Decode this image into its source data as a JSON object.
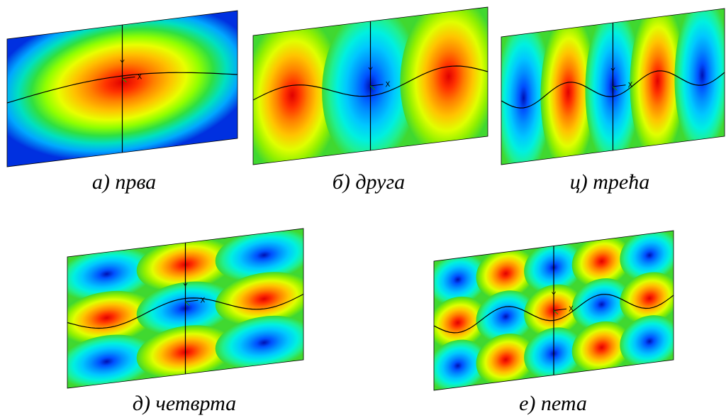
{
  "panels": [
    {
      "caption": "а) прва",
      "axis_labels": [
        "Y",
        "X"
      ]
    },
    {
      "caption": "б) друга",
      "axis_labels": [
        "Y",
        "X"
      ]
    },
    {
      "caption": "ц) трећа",
      "axis_labels": [
        "Y",
        "X"
      ]
    },
    {
      "caption": "д) четврта",
      "axis_labels": [
        "Y",
        "X"
      ]
    },
    {
      "caption": "е) пета",
      "axis_labels": [
        "Y",
        "X"
      ]
    }
  ]
}
